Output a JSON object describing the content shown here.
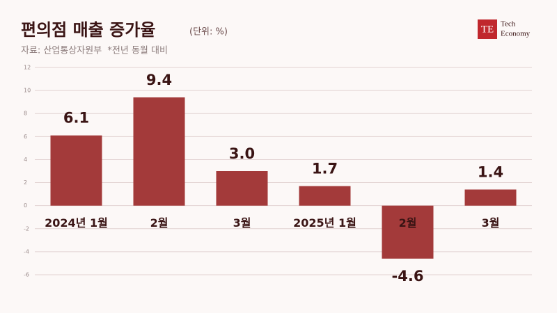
{
  "chart_data": {
    "type": "bar",
    "title": "편의점 매출 증가율",
    "unit_note": "(단위: %)",
    "source": "자료: 산업통상자원부  *전년 동월 대비",
    "categories": [
      "2024년 1월",
      "2월",
      "3월",
      "2025년 1월",
      "2월",
      "3월"
    ],
    "values": [
      6.1,
      9.4,
      3.0,
      1.7,
      -4.6,
      1.4
    ],
    "value_labels": [
      "6.1",
      "9.4",
      "3.0",
      "1.7",
      "-4.6",
      "1.4"
    ],
    "color": "#a33a3a",
    "ylim": [
      -6,
      12
    ],
    "yticks": [
      -6,
      -4,
      -2,
      0,
      2,
      4,
      6,
      8,
      10,
      12
    ],
    "grid": true
  },
  "logo": {
    "mark": "TE",
    "line1": "Tech",
    "line2": "Economy"
  }
}
